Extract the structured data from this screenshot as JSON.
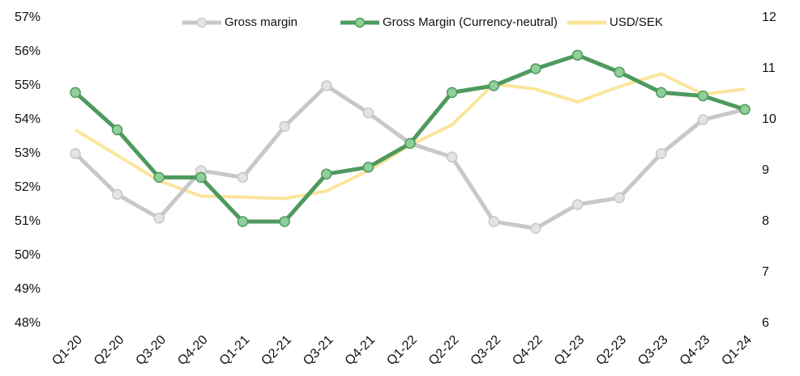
{
  "chart_data": {
    "type": "line",
    "categories": [
      "Q1-20",
      "Q2-20",
      "Q3-20",
      "Q4-20",
      "Q1-21",
      "Q2-21",
      "Q3-21",
      "Q4-21",
      "Q1-22",
      "Q2-22",
      "Q3-22",
      "Q4-22",
      "Q1-23",
      "Q2-23",
      "Q3-23",
      "Q4-23",
      "Q1-24"
    ],
    "series": [
      {
        "name": "Gross margin",
        "color": "#c8c8c8",
        "marker": true,
        "values": [
          53.0,
          51.8,
          51.1,
          52.5,
          52.3,
          53.8,
          55.0,
          54.2,
          53.3,
          52.9,
          51.0,
          50.8,
          51.5,
          51.7,
          53.0,
          54.0,
          54.3
        ]
      },
      {
        "name": "Gross Margin (Currency-neutral)",
        "color": "#4e9a5e",
        "marker": true,
        "values": [
          54.8,
          53.7,
          52.3,
          52.3,
          51.0,
          51.0,
          52.4,
          52.6,
          53.3,
          54.8,
          55.0,
          55.5,
          55.9,
          55.4,
          54.8,
          54.7,
          54.3
        ]
      },
      {
        "name": "USD/SEK",
        "color": "#fbe59a",
        "marker": false,
        "axis": "y2",
        "values": [
          9.8,
          9.3,
          8.8,
          8.5,
          8.48,
          8.45,
          8.6,
          9.0,
          9.5,
          9.9,
          10.7,
          10.6,
          10.35,
          10.65,
          10.9,
          10.5,
          10.6
        ]
      }
    ],
    "ylim": [
      48,
      57
    ],
    "yticks": [
      {
        "value": 48,
        "label": "48%"
      },
      {
        "value": 49,
        "label": "49%"
      },
      {
        "value": 50,
        "label": "50%"
      },
      {
        "value": 51,
        "label": "51%"
      },
      {
        "value": 52,
        "label": "52%"
      },
      {
        "value": 53,
        "label": "53%"
      },
      {
        "value": 54,
        "label": "54%"
      },
      {
        "value": 55,
        "label": "55%"
      },
      {
        "value": 56,
        "label": "56%"
      },
      {
        "value": 57,
        "label": "57%"
      }
    ],
    "y2lim": [
      6,
      12
    ],
    "y2ticks": [
      6,
      7,
      8,
      9,
      10,
      11,
      12
    ],
    "legend": "top"
  }
}
